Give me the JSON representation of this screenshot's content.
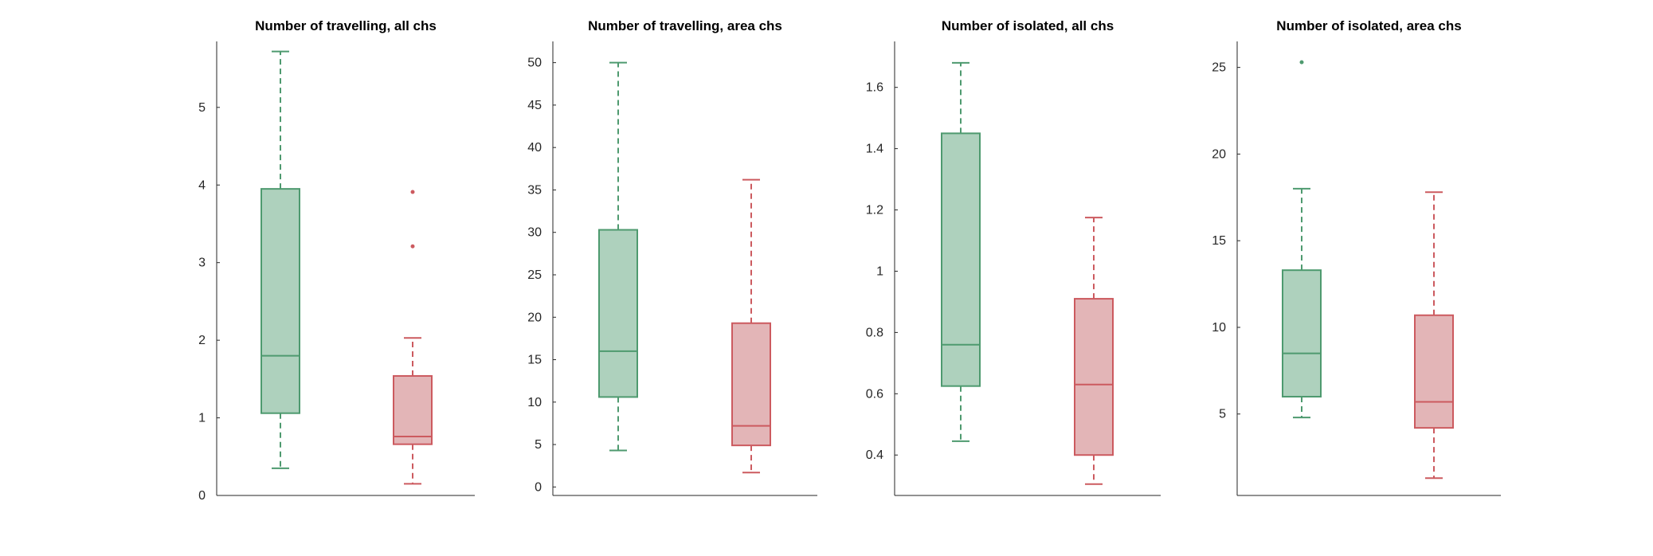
{
  "colors": {
    "group1_stroke": "#4e9a6f",
    "group1_fill": "#aed1bd",
    "group2_stroke": "#cc5a5f",
    "group2_fill": "#e3b5b7",
    "axis": "#262626"
  },
  "chart_data": [
    {
      "type": "box",
      "title": "Number of travelling, all chs",
      "xlabel": "",
      "ylabel": "",
      "ylim": [
        0,
        5.85
      ],
      "ticks": [
        0,
        1,
        2,
        3,
        4,
        5
      ],
      "tick_labels": [
        "0",
        "1",
        "2",
        "3",
        "4",
        "5"
      ],
      "grid": false,
      "boxes": [
        {
          "group": 1,
          "whisker_low": 0.35,
          "q1": 1.06,
          "median": 1.8,
          "q3": 3.95,
          "whisker_high": 5.72,
          "outliers": []
        },
        {
          "group": 2,
          "whisker_low": 0.15,
          "q1": 0.66,
          "median": 0.76,
          "q3": 1.54,
          "whisker_high": 2.03,
          "outliers": [
            3.21,
            3.91
          ]
        }
      ]
    },
    {
      "type": "box",
      "title": "Number of travelling, area chs",
      "xlabel": "",
      "ylabel": "",
      "ylim": [
        -1,
        52.5
      ],
      "ticks": [
        0,
        5,
        10,
        15,
        20,
        25,
        30,
        35,
        40,
        45,
        50
      ],
      "tick_labels": [
        "0",
        "5",
        "10",
        "15",
        "20",
        "25",
        "30",
        "35",
        "40",
        "45",
        "50"
      ],
      "grid": false,
      "boxes": [
        {
          "group": 1,
          "whisker_low": 4.3,
          "q1": 10.6,
          "median": 16.0,
          "q3": 30.3,
          "whisker_high": 50.0,
          "outliers": []
        },
        {
          "group": 2,
          "whisker_low": 1.7,
          "q1": 4.9,
          "median": 7.2,
          "q3": 19.3,
          "whisker_high": 36.2,
          "outliers": []
        }
      ]
    },
    {
      "type": "box",
      "title": "Number of isolated, all chs",
      "xlabel": "",
      "ylabel": "",
      "ylim": [
        0.268,
        1.75
      ],
      "ticks": [
        0.4,
        0.6,
        0.8,
        1.0,
        1.2,
        1.4,
        1.6
      ],
      "tick_labels": [
        "0.4",
        "0.6",
        "0.8",
        "1",
        "1.2",
        "1.4",
        "1.6"
      ],
      "grid": false,
      "boxes": [
        {
          "group": 1,
          "whisker_low": 0.445,
          "q1": 0.625,
          "median": 0.76,
          "q3": 1.45,
          "whisker_high": 1.68,
          "outliers": []
        },
        {
          "group": 2,
          "whisker_low": 0.305,
          "q1": 0.4,
          "median": 0.63,
          "q3": 0.91,
          "whisker_high": 1.175,
          "outliers": []
        }
      ]
    },
    {
      "type": "box",
      "title": "Number of isolated, area chs",
      "xlabel": "",
      "ylabel": "",
      "ylim": [
        0.3,
        26.5
      ],
      "ticks": [
        5,
        10,
        15,
        20,
        25
      ],
      "tick_labels": [
        "5",
        "10",
        "15",
        "20",
        "25"
      ],
      "grid": false,
      "boxes": [
        {
          "group": 1,
          "whisker_low": 4.8,
          "q1": 6.0,
          "median": 8.5,
          "q3": 13.3,
          "whisker_high": 18.0,
          "outliers": [
            25.3
          ]
        },
        {
          "group": 2,
          "whisker_low": 1.3,
          "q1": 4.2,
          "median": 5.7,
          "q3": 10.7,
          "whisker_high": 17.8,
          "outliers": []
        }
      ]
    }
  ]
}
